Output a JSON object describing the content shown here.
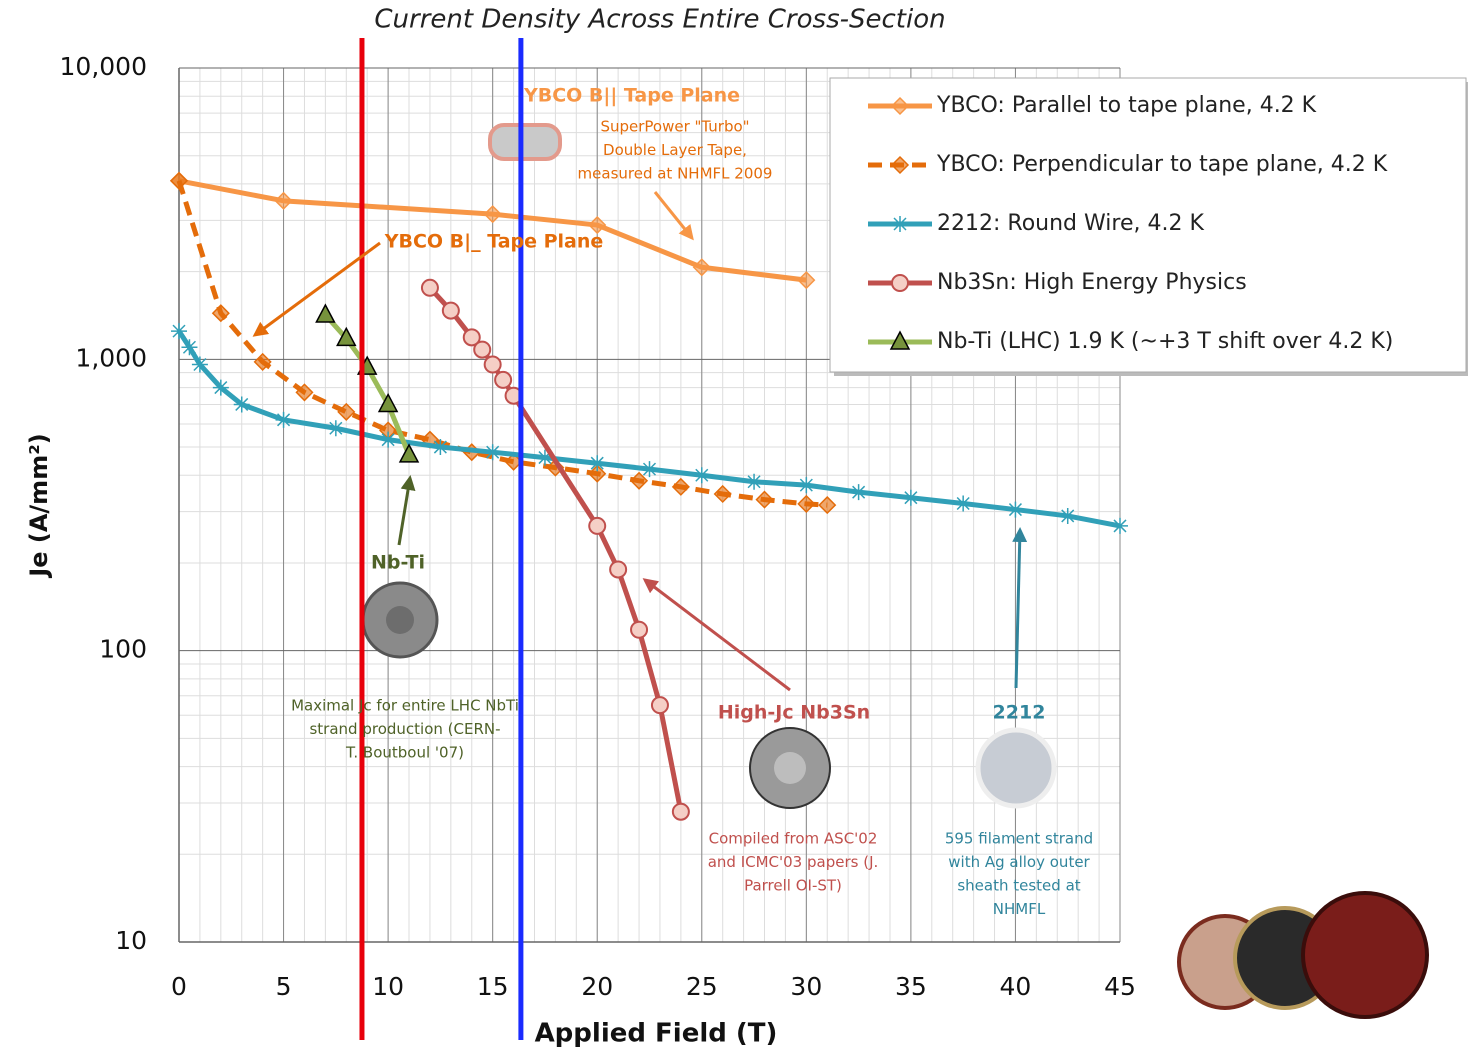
{
  "chart_data": {
    "type": "line",
    "title": "Current Density Across Entire Cross-Section",
    "x_label": "Applied Field (T)",
    "y_label": "Je (A/mm²)",
    "log_y": true,
    "grid": true,
    "minor_grid": true,
    "legend_position": "upper right",
    "xlim": [
      0,
      45
    ],
    "xticks": [
      0,
      5,
      10,
      15,
      20,
      25,
      30,
      35,
      40,
      45
    ],
    "ylim": [
      10,
      10000
    ],
    "yticks": [
      {
        "value": 10,
        "label": "10"
      },
      {
        "value": 100,
        "label": "100"
      },
      {
        "value": 1000,
        "label": "1,000"
      },
      {
        "value": 10000,
        "label": "10,000"
      }
    ],
    "series": [
      {
        "name": "YBCO: Parallel to tape plane, 4.2 K",
        "color": "#f79646",
        "marker": "diamond",
        "line_style": "solid",
        "x": [
          0,
          5,
          15,
          20,
          25,
          30
        ],
        "values": [
          4100,
          3500,
          3150,
          2890,
          2070,
          1870
        ]
      },
      {
        "name": "YBCO: Perpendicular to tape plane, 4.2 K",
        "color": "#e46c0a",
        "marker": "diamond",
        "line_style": "dashed",
        "x": [
          0,
          2,
          4,
          6,
          8,
          10,
          12,
          14,
          16,
          18,
          20,
          22,
          24,
          26,
          28,
          30,
          31
        ],
        "values": [
          4100,
          1440,
          980,
          770,
          660,
          570,
          530,
          480,
          445,
          425,
          405,
          383,
          365,
          345,
          330,
          319,
          316
        ]
      },
      {
        "name": "2212: Round Wire, 4.2 K",
        "color": "#31a0b8",
        "marker": "asterisk",
        "line_style": "solid",
        "x": [
          0,
          0.5,
          1,
          2,
          3,
          5,
          7.5,
          10,
          12.5,
          15,
          17.5,
          20,
          22.5,
          25,
          27.5,
          30,
          32.5,
          35,
          37.5,
          40,
          42.5,
          45
        ],
        "values": [
          1250,
          1100,
          960,
          800,
          700,
          620,
          580,
          530,
          500,
          480,
          460,
          440,
          420,
          400,
          380,
          370,
          350,
          335,
          320,
          305,
          290,
          268
        ]
      },
      {
        "name": "Nb3Sn: High Energy Physics",
        "color": "#c0504d",
        "marker": "circle",
        "line_style": "solid",
        "x": [
          12,
          13,
          14,
          14.5,
          15,
          15.5,
          16,
          20,
          21,
          22,
          23,
          24
        ],
        "values": [
          1760,
          1470,
          1190,
          1080,
          960,
          850,
          750,
          268,
          190,
          118,
          65,
          28
        ]
      },
      {
        "name": "Nb-Ti (LHC) 1.9 K (~+3 T shift over 4.2 K)",
        "color": "#9bbb59",
        "marker": "triangle",
        "line_style": "solid",
        "x": [
          7,
          8,
          9,
          10,
          11
        ],
        "values": [
          1420,
          1180,
          940,
          700,
          470
        ]
      }
    ],
    "vlines": [
      {
        "x": 8.75,
        "color": "#e8000b"
      },
      {
        "x": 16.35,
        "color": "#1a2bff"
      }
    ],
    "annotations": [
      {
        "lines": [
          "YBCO B|| Tape Plane"
        ],
        "color": "#f79646"
      },
      {
        "lines": [
          "SuperPower \"Turbo\"",
          "Double Layer Tape,",
          "measured at NHMFL 2009"
        ],
        "color": "#e46c0a"
      },
      {
        "lines": [
          "YBCO B|_ Tape Plane"
        ],
        "color": "#e46c0a"
      },
      {
        "lines": [
          "Nb-Ti"
        ],
        "color": "#4f6228"
      },
      {
        "lines": [
          "Maximal Jc for entire LHC NbTi",
          "strand production (CERN-",
          "T. Boutboul '07)"
        ],
        "color": "#4f6228"
      },
      {
        "lines": [
          "High-Jc Nb3Sn"
        ],
        "color": "#c0504d"
      },
      {
        "lines": [
          "Compiled from ASC'02",
          "and ICMC'03 papers (J.",
          "Parrell OI-ST)"
        ],
        "color": "#c0504d"
      },
      {
        "lines": [
          "2212"
        ],
        "color": "#31859c"
      },
      {
        "lines": [
          "595 filament strand",
          "with Ag alloy outer",
          "sheath tested at",
          "NHMFL"
        ],
        "color": "#31859c"
      }
    ]
  }
}
